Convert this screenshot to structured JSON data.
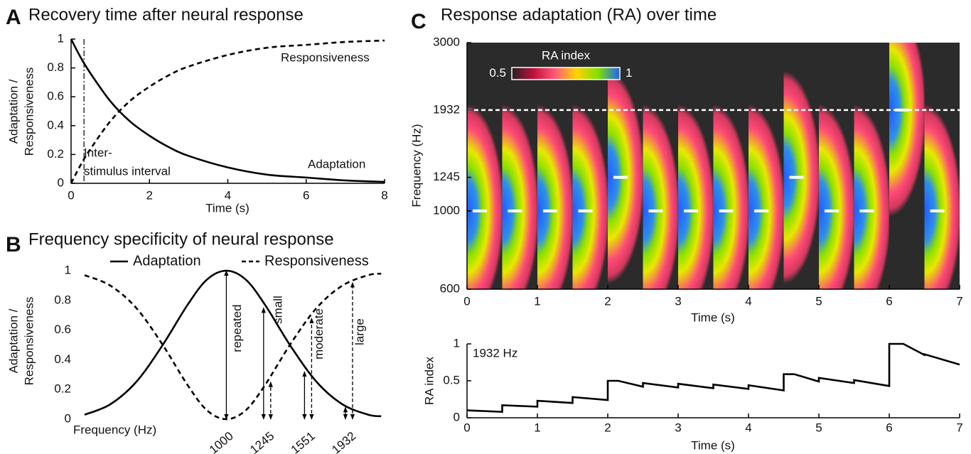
{
  "chart_data": [
    {
      "type": "line",
      "panel": "A",
      "title": "Recovery time after neural response",
      "xlabel": "Time (s)",
      "ylabel": [
        "Adaptation /",
        "Responsiveness"
      ],
      "x": [
        0,
        0.25,
        0.5,
        1,
        1.5,
        2,
        2.5,
        3,
        4,
        5,
        6,
        7,
        8
      ],
      "series": [
        {
          "name": "Adaptation",
          "color": "#000000",
          "dash": "solid",
          "values": [
            1,
            0.87,
            0.76,
            0.57,
            0.43,
            0.33,
            0.25,
            0.19,
            0.11,
            0.06,
            0.04,
            0.02,
            0.01
          ]
        },
        {
          "name": "Responsiveness",
          "color": "#000000",
          "dash": "dashed",
          "values": [
            0,
            0.13,
            0.24,
            0.43,
            0.57,
            0.67,
            0.75,
            0.81,
            0.89,
            0.94,
            0.96,
            0.98,
            0.99
          ]
        }
      ],
      "xlim": [
        0,
        8
      ],
      "ylim": [
        0,
        1
      ],
      "xticks": [
        0,
        2,
        4,
        6,
        8
      ],
      "yticks": [
        0,
        0.2,
        0.4,
        0.6,
        0.8,
        1
      ],
      "interpolation": "smooth",
      "legend": "inline",
      "interval": {
        "x": 0.33,
        "label": [
          "Inter-",
          "stimulus interval"
        ]
      }
    },
    {
      "type": "line",
      "panel": "B",
      "title": "Frequency specificity of neural response",
      "xlabel": "Frequency (Hz)",
      "ylabel": [
        "Adaptation /",
        "Responsiveness"
      ],
      "xscale": "log",
      "x": [
        467,
        536,
        616,
        707,
        812,
        901,
        1000,
        1110,
        1231,
        1414,
        1625,
        1866,
        2144,
        2297
      ],
      "series": [
        {
          "name": "Adaptation",
          "color": "#000000",
          "dash": "solid",
          "values": [
            0.03,
            0.1,
            0.25,
            0.49,
            0.77,
            0.94,
            1,
            0.94,
            0.77,
            0.49,
            0.25,
            0.1,
            0.03,
            0.02
          ]
        },
        {
          "name": "Responsiveness",
          "color": "#000000",
          "dash": "dashed",
          "values": [
            0.97,
            0.9,
            0.75,
            0.51,
            0.23,
            0.06,
            0,
            0.06,
            0.23,
            0.51,
            0.75,
            0.9,
            0.97,
            0.98
          ]
        }
      ],
      "xlim": [
        460,
        2330
      ],
      "ylim": [
        0,
        1
      ],
      "xticks": [
        1000,
        1245,
        1551,
        1932
      ],
      "yticks": [
        0,
        0.2,
        0.4,
        0.6,
        0.8,
        1
      ],
      "interpolation": "smooth",
      "legend": "top",
      "markers": [
        {
          "frequency": 1000,
          "label": "repeated",
          "adaptation": 1
        },
        {
          "frequency": 1245,
          "label": "small",
          "adaptation": 0.75,
          "responsiveness": 0.25
        },
        {
          "frequency": 1551,
          "label": "moderate",
          "adaptation": 0.32,
          "responsiveness": 0.68
        },
        {
          "frequency": 1932,
          "label": "large",
          "adaptation": 0.08,
          "responsiveness": 0.92
        }
      ]
    },
    {
      "type": "heatmap",
      "panel": "C",
      "title": "Response adaptation (RA) over time",
      "xlabel": "Time (s)",
      "ylabel": "Frequency (Hz)",
      "yscale": "log",
      "onsets": [
        0,
        0.5,
        1,
        1.5,
        2,
        2.5,
        3,
        3.5,
        4,
        4.5,
        5,
        5.5,
        6,
        6.5
      ],
      "frequencies": [
        1000,
        1000,
        1000,
        1000,
        1245,
        1000,
        1000,
        1000,
        1000,
        1245,
        1000,
        1000,
        1932,
        1000
      ],
      "xlim": [
        0,
        7
      ],
      "ylim": [
        600,
        3000
      ],
      "xticks": [
        0,
        1,
        2,
        3,
        4,
        5,
        6,
        7
      ],
      "yticks": [
        600,
        1000,
        1245,
        1932,
        3000
      ],
      "reference_line": 1932,
      "colorbar": {
        "label": "RA index",
        "clim": [
          0.5,
          1
        ],
        "cticks": [
          0.5,
          1
        ]
      }
    },
    {
      "type": "line",
      "label": "1932 Hz",
      "xlabel": "Time (s)",
      "ylabel": "RA index",
      "x": [
        0,
        0.5,
        0.5,
        1,
        1,
        1.5,
        1.5,
        2,
        2,
        2.15,
        2.5,
        2.5,
        3,
        3,
        3.5,
        3.5,
        4,
        4,
        4.5,
        4.5,
        4.65,
        5,
        5,
        5.5,
        5.5,
        6,
        6,
        6.2,
        6.5,
        6.5,
        7
      ],
      "series": [
        {
          "color": "#000000",
          "dash": "solid",
          "values": [
            0.1,
            0.08,
            0.17,
            0.15,
            0.23,
            0.2,
            0.28,
            0.24,
            0.5,
            0.5,
            0.42,
            0.47,
            0.41,
            0.46,
            0.4,
            0.45,
            0.39,
            0.44,
            0.37,
            0.59,
            0.59,
            0.49,
            0.54,
            0.47,
            0.51,
            0.43,
            1,
            1,
            0.85,
            0.86,
            0.72
          ]
        }
      ],
      "xlim": [
        0,
        7
      ],
      "ylim": [
        0,
        1
      ],
      "xticks": [
        0,
        1,
        2,
        3,
        4,
        5,
        6,
        7
      ],
      "yticks": [
        0,
        0.5,
        1
      ],
      "interpolation": "linear"
    }
  ]
}
